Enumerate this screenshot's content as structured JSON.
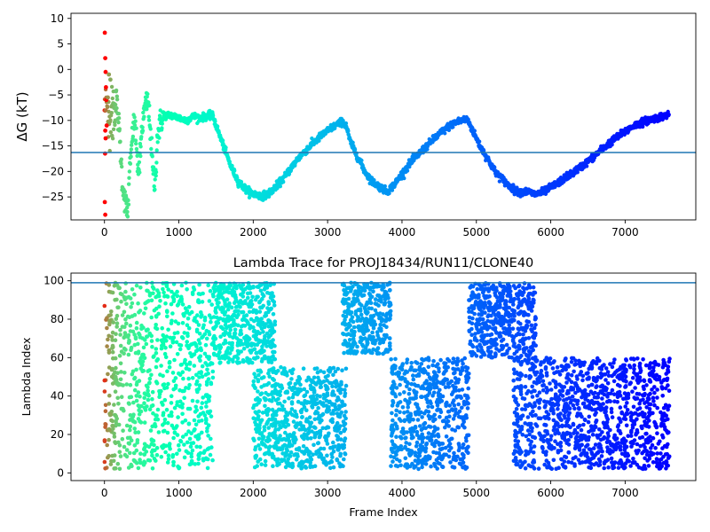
{
  "chart_data": [
    {
      "type": "scatter",
      "title": "",
      "xlabel": "",
      "ylabel": "ΔG (kT)",
      "xlim": [
        -450,
        7950
      ],
      "ylim": [
        -29.5,
        11
      ],
      "xticks": [
        0,
        1000,
        2000,
        3000,
        4000,
        5000,
        6000,
        7000
      ],
      "yticks": [
        10,
        5,
        0,
        -5,
        -10,
        -15,
        -20,
        -25
      ],
      "tick_labels_x": [
        "0",
        "1000",
        "2000",
        "3000",
        "4000",
        "5000",
        "6000",
        "7000"
      ],
      "tick_labels_y": [
        "10",
        "5",
        "0",
        "−5",
        "−10",
        "−15",
        "−20",
        "−25"
      ],
      "colormap": "rainbow (red at frame 0 → violet at last frame)",
      "reference_line": {
        "y": -16.3,
        "color": "#1f77b4"
      },
      "trace": [
        [
          0,
          -10
        ],
        [
          20,
          -4
        ],
        [
          40,
          -8
        ],
        [
          60,
          -12
        ],
        [
          80,
          -7
        ],
        [
          120,
          -9
        ],
        [
          160,
          -6
        ],
        [
          200,
          -12
        ],
        [
          240,
          -22
        ],
        [
          280,
          -26
        ],
        [
          310,
          -28.5
        ],
        [
          340,
          -20
        ],
        [
          380,
          -12
        ],
        [
          410,
          -10
        ],
        [
          440,
          -18
        ],
        [
          470,
          -20
        ],
        [
          500,
          -12
        ],
        [
          540,
          -8
        ],
        [
          580,
          -6
        ],
        [
          620,
          -12
        ],
        [
          650,
          -20
        ],
        [
          680,
          -23
        ],
        [
          710,
          -13
        ],
        [
          760,
          -10
        ],
        [
          800,
          -9
        ],
        [
          900,
          -9
        ],
        [
          1000,
          -9.5
        ],
        [
          1100,
          -10
        ],
        [
          1200,
          -9.2
        ],
        [
          1300,
          -9.5
        ],
        [
          1400,
          -9
        ],
        [
          1460,
          -9.2
        ],
        [
          1500,
          -11
        ],
        [
          1600,
          -15
        ],
        [
          1700,
          -19
        ],
        [
          1800,
          -22
        ],
        [
          1900,
          -23.5
        ],
        [
          2000,
          -24.4
        ],
        [
          2100,
          -24.8
        ],
        [
          2200,
          -24.5
        ],
        [
          2300,
          -23
        ],
        [
          2400,
          -21.5
        ],
        [
          2500,
          -19.5
        ],
        [
          2600,
          -17.5
        ],
        [
          2700,
          -16
        ],
        [
          2800,
          -14.5
        ],
        [
          2900,
          -13.2
        ],
        [
          3000,
          -12
        ],
        [
          3100,
          -11
        ],
        [
          3200,
          -10.2
        ],
        [
          3250,
          -11
        ],
        [
          3300,
          -14
        ],
        [
          3400,
          -17
        ],
        [
          3500,
          -20
        ],
        [
          3600,
          -22
        ],
        [
          3700,
          -23
        ],
        [
          3800,
          -24
        ],
        [
          3900,
          -22.5
        ],
        [
          4000,
          -20.5
        ],
        [
          4100,
          -18.5
        ],
        [
          4200,
          -17
        ],
        [
          4300,
          -15.5
        ],
        [
          4400,
          -14
        ],
        [
          4500,
          -12.7
        ],
        [
          4600,
          -11.5
        ],
        [
          4700,
          -10.5
        ],
        [
          4800,
          -10
        ],
        [
          4880,
          -9.8
        ],
        [
          4950,
          -12
        ],
        [
          5050,
          -15
        ],
        [
          5150,
          -17.5
        ],
        [
          5250,
          -20
        ],
        [
          5350,
          -21.5
        ],
        [
          5450,
          -23
        ],
        [
          5550,
          -24
        ],
        [
          5700,
          -24
        ],
        [
          5800,
          -24.5
        ],
        [
          5900,
          -24
        ],
        [
          6000,
          -23.2
        ],
        [
          6100,
          -22.2
        ],
        [
          6200,
          -21.2
        ],
        [
          6300,
          -20.2
        ],
        [
          6400,
          -19.2
        ],
        [
          6500,
          -18
        ],
        [
          6600,
          -16.8
        ],
        [
          6700,
          -15.5
        ],
        [
          6800,
          -14.3
        ],
        [
          6900,
          -13.2
        ],
        [
          7000,
          -12.2
        ],
        [
          7100,
          -11.2
        ],
        [
          7200,
          -10.5
        ],
        [
          7300,
          -10
        ],
        [
          7400,
          -9.6
        ],
        [
          7500,
          -9.2
        ],
        [
          7590,
          -8.8
        ]
      ],
      "outliers": [
        [
          5,
          7.2
        ],
        [
          10,
          2.2
        ],
        [
          15,
          -0.5
        ],
        [
          20,
          -3.5
        ],
        [
          25,
          -6
        ],
        [
          10,
          -12
        ],
        [
          15,
          -13.5
        ],
        [
          8,
          -16.5
        ],
        [
          5,
          -26
        ],
        [
          10,
          -28.5
        ],
        [
          30,
          -11
        ],
        [
          45,
          -5.5
        ],
        [
          60,
          -1
        ],
        [
          80,
          -2
        ],
        [
          100,
          -13
        ]
      ]
    },
    {
      "type": "scatter",
      "title": "Lambda Trace for PROJ18434/RUN11/CLONE40",
      "xlabel": "Frame Index",
      "ylabel": "Lambda Index",
      "xlim": [
        -450,
        7950
      ],
      "ylim": [
        -4,
        104
      ],
      "xticks": [
        0,
        1000,
        2000,
        3000,
        4000,
        5000,
        6000,
        7000
      ],
      "yticks": [
        0,
        20,
        40,
        60,
        80,
        100
      ],
      "tick_labels_x": [
        "0",
        "1000",
        "2000",
        "3000",
        "4000",
        "5000",
        "6000",
        "7000"
      ],
      "tick_labels_y": [
        "0",
        "20",
        "40",
        "60",
        "80",
        "100"
      ],
      "colormap": "rainbow (red at frame 0 → violet at last frame)",
      "reference_line": {
        "y": 99,
        "color": "#1f77b4"
      },
      "clouds": [
        {
          "x": [
            0,
            100
          ],
          "y": [
            0,
            99
          ]
        },
        {
          "x": [
            100,
            1460
          ],
          "y": [
            0,
            99
          ]
        },
        {
          "x": [
            1460,
            2300
          ],
          "y": [
            55,
            99
          ]
        },
        {
          "x": [
            2000,
            3250
          ],
          "y": [
            0,
            55
          ]
        },
        {
          "x": [
            3200,
            3850
          ],
          "y": [
            60,
            99
          ]
        },
        {
          "x": [
            3850,
            4900
          ],
          "y": [
            0,
            60
          ]
        },
        {
          "x": [
            4900,
            5800
          ],
          "y": [
            58,
            99
          ]
        },
        {
          "x": [
            5500,
            7600
          ],
          "y": [
            0,
            60
          ]
        }
      ]
    }
  ]
}
